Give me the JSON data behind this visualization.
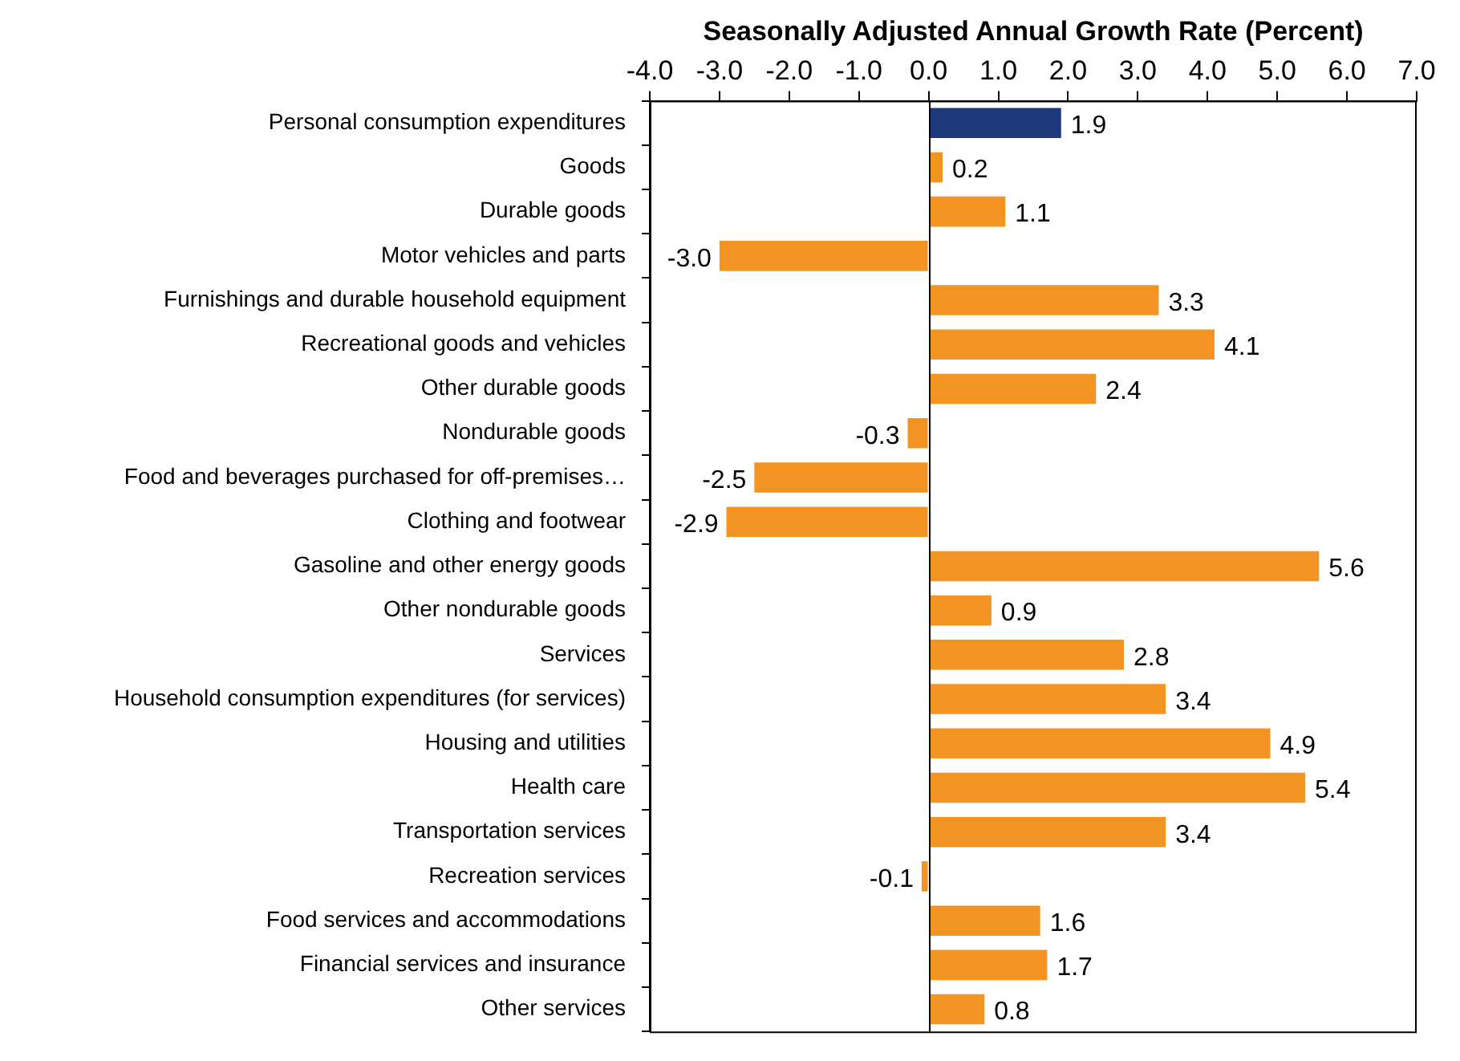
{
  "chart_data": {
    "type": "bar",
    "orientation": "horizontal",
    "xlabel": "Seasonally Adjusted Annual Growth Rate (Percent)",
    "categories": [
      "Personal consumption expenditures",
      "Goods",
      "Durable goods",
      "Motor vehicles and parts",
      "Furnishings and durable household equipment",
      "Recreational goods and vehicles",
      "Other durable goods",
      "Nondurable goods",
      "Food and beverages purchased for off-premises…",
      "Clothing and footwear",
      "Gasoline and other energy goods",
      "Other nondurable goods",
      "Services",
      "Household consumption expenditures (for services)",
      "Housing and utilities",
      "Health care",
      "Transportation services",
      "Recreation services",
      "Food services and accommodations",
      "Financial services and insurance",
      "Other services"
    ],
    "values": [
      1.9,
      0.2,
      1.1,
      -3.0,
      3.3,
      4.1,
      2.4,
      -0.3,
      -2.5,
      -2.9,
      5.6,
      0.9,
      2.8,
      3.4,
      4.9,
      5.4,
      3.4,
      -0.1,
      1.6,
      1.7,
      0.8
    ],
    "value_labels": [
      "1.9",
      "0.2",
      "1.1",
      "-3.0",
      "3.3",
      "4.1",
      "2.4",
      "-0.3",
      "-2.5",
      "-2.9",
      "5.6",
      "0.9",
      "2.8",
      "3.4",
      "4.9",
      "5.4",
      "3.4",
      "-0.1",
      "1.6",
      "1.7",
      "0.8"
    ],
    "colors": [
      "#1f3a7c",
      "#f39322",
      "#f39322",
      "#f39322",
      "#f39322",
      "#f39322",
      "#f39322",
      "#f39322",
      "#f39322",
      "#f39322",
      "#f39322",
      "#f39322",
      "#f39322",
      "#f39322",
      "#f39322",
      "#f39322",
      "#f39322",
      "#f39322",
      "#f39322",
      "#f39322",
      "#f39322"
    ],
    "xlim": [
      -4,
      7
    ],
    "xticks": [
      {
        "value": -4,
        "label": "-4.0"
      },
      {
        "value": -3,
        "label": "-3.0"
      },
      {
        "value": -2,
        "label": "-2.0"
      },
      {
        "value": -1,
        "label": "-1.0"
      },
      {
        "value": 0,
        "label": "0.0"
      },
      {
        "value": 1,
        "label": "1.0"
      },
      {
        "value": 2,
        "label": "2.0"
      },
      {
        "value": 3,
        "label": "3.0"
      },
      {
        "value": 4,
        "label": "4.0"
      },
      {
        "value": 5,
        "label": "5.0"
      },
      {
        "value": 6,
        "label": "6.0"
      },
      {
        "value": 7,
        "label": "7.0"
      }
    ],
    "ref_lines": [
      {
        "axis": "x",
        "value": 0,
        "color": "#000000"
      }
    ],
    "grid": false,
    "legend": false
  }
}
